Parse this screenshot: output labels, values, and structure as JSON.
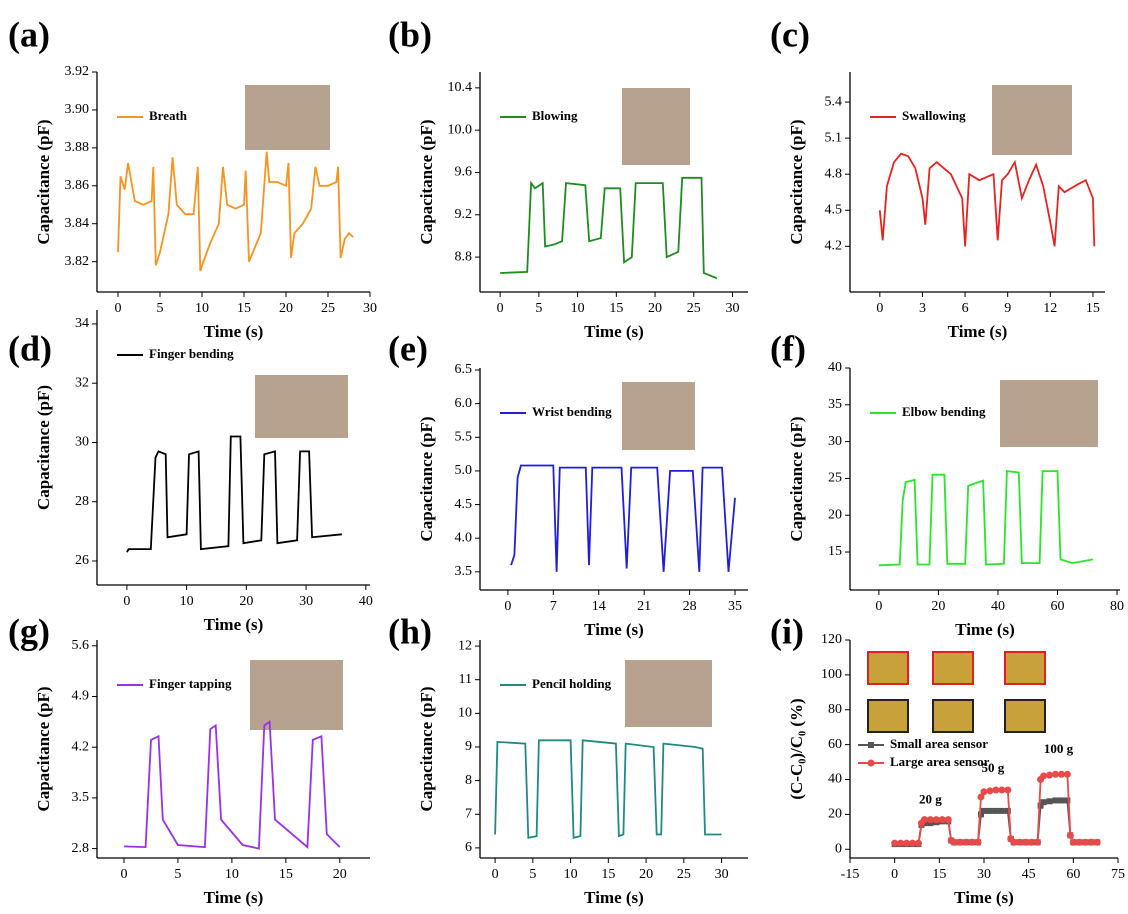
{
  "chart_data": [
    {
      "type": "line",
      "panel": "(a)",
      "xlabel": "Time (s)",
      "ylabel": "Capacitance (pF)",
      "legend": "upper left",
      "x": [
        0,
        0.3,
        0.8,
        1.2,
        2,
        3,
        4,
        4.2,
        4.5,
        5,
        6,
        6.5,
        7,
        8,
        9,
        9.5,
        9.8,
        10,
        11,
        12,
        12.5,
        13,
        14,
        15,
        15.2,
        15.6,
        17,
        17.7,
        18,
        19,
        20,
        20.3,
        20.6,
        21,
        22,
        23,
        23.5,
        24,
        25,
        26,
        26.2,
        26.5,
        27,
        27.5,
        28
      ],
      "series": [
        {
          "name": "Breath",
          "color": "#f7931e",
          "values": [
            3.825,
            3.865,
            3.858,
            3.872,
            3.852,
            3.85,
            3.852,
            3.87,
            3.818,
            3.825,
            3.845,
            3.875,
            3.85,
            3.845,
            3.845,
            3.87,
            3.815,
            3.818,
            3.83,
            3.84,
            3.87,
            3.85,
            3.848,
            3.85,
            3.868,
            3.82,
            3.835,
            3.878,
            3.862,
            3.862,
            3.86,
            3.872,
            3.822,
            3.835,
            3.84,
            3.848,
            3.87,
            3.86,
            3.86,
            3.862,
            3.87,
            3.822,
            3.832,
            3.835,
            3.833
          ]
        }
      ],
      "xlim": [
        -2.5,
        30
      ],
      "ylim": [
        3.804,
        3.92
      ],
      "xticks": [
        0,
        5,
        10,
        15,
        20,
        25,
        30
      ],
      "yticks": [
        3.82,
        3.84,
        3.86,
        3.88,
        {
          "value": 3.9,
          "label": "3.90"
        },
        3.92
      ]
    },
    {
      "type": "line",
      "panel": "(b)",
      "xlabel": "Time (s)",
      "ylabel": "Capacitance (pF)",
      "legend": "upper left",
      "x": [
        0,
        3.5,
        4,
        4.5,
        5.5,
        5.8,
        7,
        8,
        8.5,
        11,
        11.5,
        13,
        13.5,
        15.5,
        16,
        17,
        17.5,
        21,
        21.5,
        23,
        23.5,
        26,
        26.3,
        28
      ],
      "series": [
        {
          "name": "Blowing",
          "color": "#1e8c1e",
          "values": [
            8.65,
            8.66,
            9.5,
            9.45,
            9.5,
            8.9,
            8.92,
            8.95,
            9.5,
            9.48,
            8.95,
            8.98,
            9.45,
            9.45,
            8.75,
            8.8,
            9.5,
            9.5,
            8.8,
            8.85,
            9.55,
            9.55,
            8.65,
            8.6
          ]
        }
      ],
      "xlim": [
        -2.6,
        32
      ],
      "ylim": [
        8.47,
        10.55
      ],
      "xticks": [
        0,
        5,
        10,
        15,
        20,
        25,
        30
      ],
      "yticks": [
        8.8,
        9.2,
        9.6,
        {
          "value": 10,
          "label": "10.0"
        },
        10.4
      ]
    },
    {
      "type": "line",
      "panel": "(c)",
      "xlabel": "Time (s)",
      "ylabel": "Capacitance (pF)",
      "legend": "upper left",
      "x": [
        0,
        0.2,
        0.5,
        1,
        1.5,
        2,
        2.5,
        3,
        3.2,
        3.5,
        4,
        5,
        5.8,
        6,
        6.3,
        7,
        8,
        8.3,
        8.6,
        9,
        9.5,
        10,
        10.5,
        11,
        11.5,
        12,
        12.3,
        12.6,
        13,
        14,
        14.5,
        15,
        15.1
      ],
      "series": [
        {
          "name": "Swallowing",
          "color": "#e8231f",
          "values": [
            4.5,
            4.25,
            4.7,
            4.9,
            4.97,
            4.95,
            4.85,
            4.6,
            4.38,
            4.85,
            4.9,
            4.8,
            4.6,
            4.2,
            4.8,
            4.75,
            4.8,
            4.25,
            4.75,
            4.8,
            4.9,
            4.6,
            4.75,
            4.88,
            4.7,
            4.4,
            4.2,
            4.7,
            4.65,
            4.72,
            4.75,
            4.6,
            4.2
          ]
        }
      ],
      "xlim": [
        -2.1,
        15.85
      ],
      "ylim": [
        3.82,
        5.65
      ],
      "xticks": [
        0,
        3,
        6,
        9,
        12,
        15
      ],
      "yticks": [
        4.2,
        4.5,
        4.8,
        5.1,
        5.4
      ]
    },
    {
      "type": "line",
      "panel": "(d)",
      "xlabel": "Time (s)",
      "ylabel": "Capacitance (pF)",
      "legend": "upper left",
      "x": [
        0,
        0.3,
        4,
        4.8,
        5.3,
        6.5,
        6.8,
        10,
        10.4,
        12,
        12.4,
        17,
        17.4,
        19,
        19.5,
        22.5,
        23,
        24.8,
        25.2,
        28.5,
        29,
        30.5,
        31,
        36
      ],
      "series": [
        {
          "name": "Finger bending",
          "color": "#000000",
          "values": [
            26.3,
            26.4,
            26.4,
            29.5,
            29.7,
            29.6,
            26.8,
            26.9,
            29.6,
            29.7,
            26.4,
            26.5,
            30.2,
            30.2,
            26.6,
            26.7,
            29.6,
            29.7,
            26.6,
            26.7,
            29.7,
            29.7,
            26.8,
            26.9
          ]
        }
      ],
      "xlim": [
        -5,
        40.7
      ],
      "ylim": [
        25.19,
        34.47
      ],
      "xticks": [
        0,
        10,
        20,
        30,
        40
      ],
      "yticks": [
        26,
        28,
        30,
        32,
        34
      ]
    },
    {
      "type": "line",
      "panel": "(e)",
      "xlabel": "Time (s)",
      "ylabel": "Capacitance (pF)",
      "legend": "upper left",
      "x": [
        0.5,
        1,
        1.5,
        2,
        7,
        7.5,
        8,
        12,
        12.5,
        13,
        17.5,
        18.3,
        19,
        23,
        24,
        25,
        28.5,
        29.5,
        30,
        33,
        34,
        35
      ],
      "series": [
        {
          "name": "Wrist bending",
          "color": "#1f1fdb",
          "values": [
            3.6,
            3.75,
            4.9,
            5.08,
            5.08,
            3.5,
            5.05,
            5.05,
            3.6,
            5.05,
            5.05,
            3.55,
            5.05,
            5.05,
            3.5,
            5.0,
            5.0,
            3.5,
            5.05,
            5.05,
            3.5,
            4.6
          ]
        }
      ],
      "xlim": [
        -4.3,
        37
      ],
      "ylim": [
        3.23,
        6.53
      ],
      "xticks": [
        0,
        7,
        14,
        21,
        28,
        35
      ],
      "yticks": [
        3.5,
        {
          "value": 4,
          "label": "4.0"
        },
        4.5,
        {
          "value": 5,
          "label": "5.0"
        },
        5.5,
        {
          "value": 6,
          "label": "6.0"
        },
        6.5
      ]
    },
    {
      "type": "line",
      "panel": "(f)",
      "xlabel": "Time (s)",
      "ylabel": "Capacitance (pF)",
      "legend": "upper left",
      "x": [
        0,
        7,
        8,
        9,
        12,
        13,
        17,
        18,
        22,
        23,
        29,
        30,
        35,
        36,
        42,
        43,
        47,
        48,
        54,
        55,
        60,
        61,
        65,
        72
      ],
      "series": [
        {
          "name": "Elbow bending",
          "color": "#28e628",
          "values": [
            13.2,
            13.3,
            22,
            24.5,
            24.8,
            13.3,
            13.3,
            25.5,
            25.5,
            13.4,
            13.4,
            24,
            24.7,
            13.3,
            13.4,
            26,
            25.8,
            13.5,
            13.5,
            26,
            26,
            14,
            13.5,
            14
          ]
        }
      ],
      "xlim": [
        -9.7,
        81
      ],
      "ylim": [
        9.84,
        40
      ],
      "xticks": [
        0,
        20,
        40,
        60,
        80
      ],
      "yticks": [
        15,
        20,
        25,
        30,
        35,
        40
      ]
    },
    {
      "type": "line",
      "panel": "(g)",
      "xlabel": "Time (s)",
      "ylabel": "Capacitance (pF)",
      "legend": "upper left",
      "x": [
        0,
        2,
        2.5,
        3.2,
        3.6,
        5,
        7.5,
        8,
        8.5,
        9,
        11,
        12.5,
        13,
        13.5,
        14,
        17,
        17.5,
        18.3,
        18.8,
        20
      ],
      "series": [
        {
          "name": "Finger tapping",
          "color": "#9b30e8",
          "values": [
            2.83,
            2.82,
            4.3,
            4.35,
            3.2,
            2.85,
            2.82,
            4.45,
            4.5,
            3.2,
            2.85,
            2.8,
            4.5,
            4.55,
            3.2,
            2.82,
            4.3,
            4.35,
            3.0,
            2.82
          ]
        }
      ],
      "xlim": [
        -2.5,
        22.8
      ],
      "ylim": [
        2.67,
        5.68
      ],
      "xticks": [
        0,
        5,
        10,
        15,
        20
      ],
      "yticks": [
        2.8,
        3.5,
        4.2,
        4.9,
        5.6
      ]
    },
    {
      "type": "line",
      "panel": "(h)",
      "xlabel": "Time (s)",
      "ylabel": "Capacitance (pF)",
      "legend": "upper left",
      "x": [
        0,
        0.3,
        4,
        4.4,
        5.5,
        5.8,
        10,
        10.4,
        11.3,
        11.6,
        16,
        16.4,
        17,
        17.3,
        21,
        21.4,
        22,
        22.3,
        26.5,
        27.5,
        27.8,
        30
      ],
      "series": [
        {
          "name": "Pencil holding",
          "color": "#1f8a82",
          "values": [
            6.4,
            9.15,
            9.1,
            6.3,
            6.35,
            9.2,
            9.2,
            6.3,
            6.35,
            9.2,
            9.1,
            6.35,
            6.4,
            9.1,
            9.0,
            6.4,
            6.4,
            9.1,
            9.0,
            8.95,
            6.4,
            6.4
          ]
        }
      ],
      "xlim": [
        -2,
        33.5
      ],
      "ylim": [
        5.7,
        12.18
      ],
      "xticks": [
        0,
        5,
        10,
        15,
        20,
        25,
        30
      ],
      "yticks": [
        6,
        7,
        8,
        9,
        10,
        11,
        12
      ]
    },
    {
      "type": "line",
      "panel": "(i)",
      "xlabel": "Time (s)",
      "ylabel": "(C-C₀)/C₀ (%)",
      "legend": "upper left",
      "markers": true,
      "x": [
        0,
        2,
        4,
        6,
        8,
        9,
        10,
        12,
        14,
        16,
        18,
        19,
        20,
        22,
        24,
        26,
        28,
        29,
        30,
        32,
        34,
        36,
        38,
        39,
        40,
        42,
        44,
        46,
        48,
        49,
        50,
        52,
        54,
        56,
        58,
        59,
        60,
        62,
        64,
        66,
        68
      ],
      "series": [
        {
          "name": "Small area sensor",
          "color": "#555555",
          "values": [
            3,
            3,
            3,
            3,
            3,
            14,
            15,
            15,
            15.5,
            16,
            16,
            5,
            4,
            4,
            4,
            4,
            4,
            20,
            22,
            22,
            22,
            22,
            22,
            6,
            4,
            4,
            4,
            4,
            4,
            25,
            27,
            27.5,
            28,
            28,
            28,
            8,
            4,
            4,
            4,
            4,
            4
          ]
        },
        {
          "name": "Large area sensor",
          "color": "#e84a4a",
          "values": [
            3.5,
            3.5,
            3.5,
            3.5,
            3.5,
            15,
            17,
            17,
            17,
            17,
            17,
            5,
            4,
            4,
            4,
            4,
            4,
            30,
            33,
            33.5,
            34,
            34,
            34,
            6,
            4,
            4,
            4,
            4,
            4,
            40,
            42,
            42.5,
            43,
            43,
            43,
            8,
            4,
            4,
            4,
            4,
            4
          ]
        }
      ],
      "annotations": [
        {
          "text": "20 g",
          "x": 12,
          "y": 28
        },
        {
          "text": "50 g",
          "x": 33,
          "y": 46
        },
        {
          "text": "100 g",
          "x": 55,
          "y": 57
        }
      ],
      "xlim": [
        -15,
        75
      ],
      "ylim": [
        -5,
        120
      ],
      "xticks": [
        -15,
        0,
        15,
        30,
        45,
        60,
        75
      ],
      "yticks": [
        0,
        20,
        40,
        60,
        80,
        100,
        120
      ]
    }
  ]
}
